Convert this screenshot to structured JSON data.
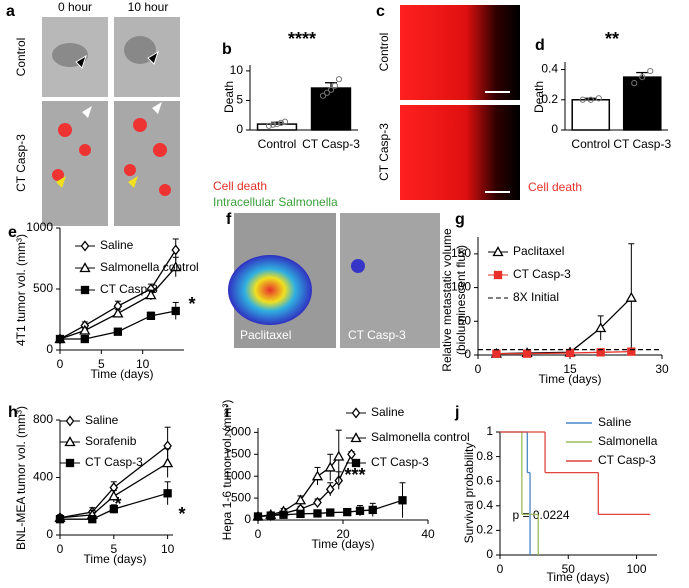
{
  "figure": {
    "a": {
      "label": "a",
      "columns": [
        "0 hour",
        "10 hour"
      ],
      "rows": [
        "Control",
        "CT Casp-3"
      ],
      "legend": [
        "Cell death",
        "Intracellular Salmonella"
      ]
    },
    "c": {
      "label": "c",
      "rows": [
        "Control",
        "CT Casp-3"
      ],
      "legend": "Cell death"
    },
    "f": {
      "label": "f",
      "captions": [
        "Paclitaxel",
        "CT Casp-3"
      ]
    }
  },
  "chart_data": [
    {
      "type": "bar",
      "panel": "b",
      "ylabel": "Death",
      "categories": [
        "Control",
        "CT Casp-3"
      ],
      "values": [
        1.0,
        7.1
      ],
      "errors": [
        0.3,
        0.9
      ],
      "colors": [
        "#ffffff",
        "#000000"
      ],
      "points": [
        [
          0.7,
          0.9,
          1.0,
          1.2,
          1.4
        ],
        [
          5.8,
          6.3,
          6.8,
          7.5,
          8.6
        ]
      ],
      "ylim": [
        0,
        11
      ],
      "yticks": [
        0,
        5,
        10
      ],
      "annotations": [
        "****"
      ]
    },
    {
      "type": "bar",
      "panel": "d",
      "ylabel": "Death",
      "categories": [
        "Control",
        "CT Casp-3"
      ],
      "values": [
        0.2,
        0.35
      ],
      "errors": [
        0.01,
        0.03
      ],
      "colors": [
        "#ffffff",
        "#000000"
      ],
      "points": [
        [
          0.2,
          0.2,
          0.21
        ],
        [
          0.31,
          0.35,
          0.39
        ]
      ],
      "ylim": [
        0,
        0.45
      ],
      "yticks": [
        0,
        0.2,
        0.4
      ],
      "annotations": [
        "**"
      ]
    },
    {
      "type": "line",
      "panel": "e",
      "xlabel": "Time (days)",
      "ylabel": "4T1 tumor vol. (mm³)",
      "xlim": [
        0,
        15
      ],
      "xticks": [
        0,
        5,
        10
      ],
      "ylim": [
        0,
        1000
      ],
      "yticks": [
        0,
        500,
        1000
      ],
      "annotations": [
        "*"
      ],
      "series": [
        {
          "name": "Saline",
          "color": "#000000",
          "marker": "diamond",
          "filled": false,
          "x": [
            0,
            3,
            7,
            11,
            14
          ],
          "values": [
            90,
            200,
            360,
            500,
            820
          ],
          "errors": [
            10,
            30,
            40,
            40,
            90
          ]
        },
        {
          "name": "Salmonella control",
          "color": "#000000",
          "marker": "triangle",
          "filled": false,
          "x": [
            0,
            3,
            7,
            11,
            14
          ],
          "values": [
            90,
            160,
            300,
            450,
            680
          ],
          "errors": [
            10,
            20,
            30,
            40,
            80
          ]
        },
        {
          "name": "CT Casp-3",
          "color": "#000000",
          "marker": "square",
          "filled": true,
          "x": [
            0,
            3,
            7,
            11,
            14
          ],
          "values": [
            90,
            90,
            150,
            280,
            320
          ],
          "errors": [
            10,
            10,
            20,
            30,
            70
          ]
        }
      ]
    },
    {
      "type": "line",
      "panel": "g",
      "xlabel": "Time (days)",
      "ylabel": [
        "Relative metastatic volume",
        "(bioluminescent flux)"
      ],
      "xlim": [
        0,
        30
      ],
      "xticks": [
        0,
        15,
        30
      ],
      "ylim": [
        0,
        175
      ],
      "yticks": [
        0,
        50,
        100,
        150
      ],
      "series": [
        {
          "name": "Paclitaxel",
          "color": "#000000",
          "marker": "triangle",
          "filled": false,
          "x": [
            3,
            8,
            15,
            20,
            25
          ],
          "values": [
            2,
            3,
            4,
            40,
            85
          ],
          "errors": [
            1,
            1,
            2,
            18,
            80
          ]
        },
        {
          "name": "CT Casp-3",
          "color": "#e8302a",
          "marker": "square",
          "filled": true,
          "x": [
            3,
            8,
            15,
            20,
            25
          ],
          "values": [
            2,
            2,
            3,
            4,
            5
          ],
          "errors": [
            1,
            1,
            1,
            1,
            1
          ]
        },
        {
          "name": "8X Initial",
          "color": "#000000",
          "dash": true,
          "x": [
            0,
            30
          ],
          "values": [
            8,
            8
          ]
        }
      ]
    },
    {
      "type": "line",
      "panel": "h",
      "xlabel": "Time (days)",
      "ylabel": "BNL-MEA tumor vol. (mm³)",
      "xlim": [
        0,
        10.5
      ],
      "xticks": [
        0,
        5,
        10
      ],
      "ylim": [
        0,
        800
      ],
      "yticks": [
        0,
        400,
        800
      ],
      "annotations": [
        "*",
        "*"
      ],
      "series": [
        {
          "name": "Saline",
          "color": "#000000",
          "marker": "diamond",
          "filled": false,
          "x": [
            0,
            3,
            5,
            10
          ],
          "values": [
            120,
            160,
            330,
            620
          ],
          "errors": [
            20,
            30,
            40,
            130
          ]
        },
        {
          "name": "Sorafenib",
          "color": "#000000",
          "marker": "triangle",
          "filled": false,
          "x": [
            0,
            3,
            5,
            10
          ],
          "values": [
            120,
            140,
            270,
            500
          ],
          "errors": [
            20,
            30,
            40,
            100
          ]
        },
        {
          "name": "CT Casp-3",
          "color": "#000000",
          "marker": "square",
          "filled": true,
          "x": [
            0,
            3,
            5,
            10
          ],
          "values": [
            110,
            110,
            180,
            290
          ],
          "errors": [
            20,
            20,
            30,
            80
          ]
        }
      ]
    },
    {
      "type": "line",
      "panel": "i",
      "xlabel": "Time (days)",
      "ylabel": "Hepa 1-6 tumor vol. (mm³)",
      "xlim": [
        0,
        40
      ],
      "xticks": [
        0,
        20,
        40
      ],
      "ylim": [
        0,
        2100
      ],
      "yticks": [
        0,
        500,
        1000,
        1500,
        2000
      ],
      "annotations": [
        "***"
      ],
      "series": [
        {
          "name": "Saline",
          "color": "#000000",
          "marker": "diamond",
          "filled": false,
          "x": [
            0,
            3,
            6,
            10,
            14,
            17,
            19,
            22
          ],
          "values": [
            80,
            100,
            150,
            250,
            400,
            700,
            900,
            1500
          ],
          "errors": [
            30,
            30,
            40,
            60,
            80,
            150,
            200,
            60
          ]
        },
        {
          "name": "Salmonella control",
          "color": "#000000",
          "marker": "triangle",
          "filled": false,
          "x": [
            0,
            3,
            6,
            10,
            14,
            17,
            19
          ],
          "values": [
            80,
            120,
            200,
            450,
            1000,
            1200,
            1450
          ],
          "errors": [
            30,
            40,
            60,
            100,
            200,
            300,
            600
          ]
        },
        {
          "name": "CT Casp-3",
          "color": "#000000",
          "marker": "square",
          "filled": true,
          "x": [
            0,
            3,
            6,
            10,
            14,
            17,
            21,
            24,
            27,
            34
          ],
          "values": [
            80,
            100,
            120,
            140,
            150,
            170,
            180,
            210,
            230,
            450
          ],
          "errors": [
            30,
            30,
            40,
            40,
            50,
            60,
            80,
            120,
            150,
            400
          ]
        }
      ]
    },
    {
      "type": "step",
      "panel": "j",
      "xlabel": "Time (days)",
      "ylabel": "Survival probability",
      "xlim": [
        0,
        115
      ],
      "xticks": [
        0,
        50,
        100
      ],
      "ylim": [
        0,
        1
      ],
      "yticks": [
        0,
        0.2,
        0.4,
        0.6,
        0.8,
        1
      ],
      "annotations": [
        "p = 0.0224"
      ],
      "series": [
        {
          "name": "Saline",
          "color": "#4a86c8",
          "x": [
            0,
            20,
            22
          ],
          "values": [
            1,
            0.67,
            0
          ]
        },
        {
          "name": "Salmonella",
          "color": "#9bbb59",
          "x": [
            0,
            16,
            28
          ],
          "values": [
            1,
            0.33,
            0
          ]
        },
        {
          "name": "CT Casp-3",
          "color": "#e0443e",
          "x": [
            0,
            33,
            72,
            110
          ],
          "values": [
            1,
            0.67,
            0.33,
            0.33
          ]
        }
      ]
    }
  ]
}
